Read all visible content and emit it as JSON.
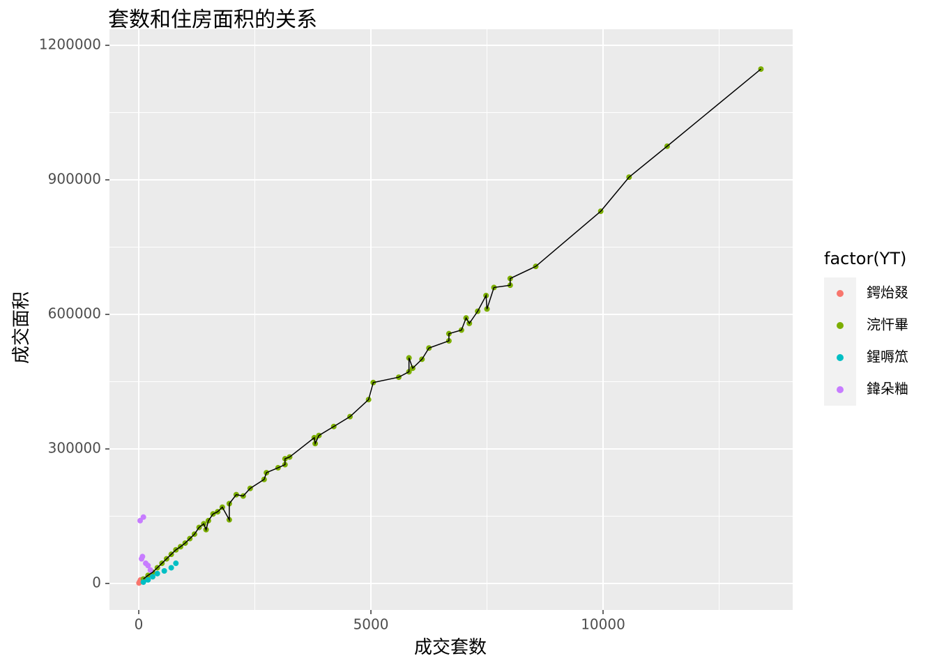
{
  "chart_data": {
    "type": "scatter",
    "title": "套数和住房面积的关系",
    "x_label": "成交套数",
    "y_label": "成交面积",
    "legend_title": "factor(YT)",
    "legend_position": "right",
    "grid": true,
    "connect_line": {
      "color": "#000000",
      "series": 1
    },
    "xlim": [
      -631,
      14084
    ],
    "ylim": [
      -59067,
      1235751
    ],
    "xticks": [
      0,
      5000,
      10000
    ],
    "yticks": [
      0,
      300000,
      600000,
      900000,
      1200000
    ],
    "xminor": [
      2500,
      7500,
      12500
    ],
    "yminor": [
      150000,
      450000,
      750000,
      1050000
    ],
    "series": [
      {
        "name": "鍔炲叕",
        "color": "#F8766D",
        "x": [
          5,
          20,
          40
        ],
        "y": [
          1000,
          4000,
          8000
        ]
      },
      {
        "name": "浣忓畢",
        "color": "#7CAE00",
        "x": [
          100,
          200,
          300,
          400,
          500,
          600,
          700,
          800,
          900,
          1000,
          1100,
          1200,
          1300,
          1400,
          1450,
          1500,
          1600,
          1700,
          1800,
          1950,
          1950,
          2100,
          2250,
          2400,
          2700,
          2750,
          3000,
          3150,
          3150,
          3250,
          3780,
          3800,
          3880,
          4200,
          4550,
          4950,
          5050,
          5600,
          5820,
          5820,
          5900,
          6100,
          6250,
          6680,
          6680,
          6950,
          7050,
          7120,
          7300,
          7480,
          7500,
          7650,
          8000,
          8000,
          8550,
          9950,
          10560,
          11380,
          13400
        ],
        "y": [
          10000,
          18000,
          25000,
          35000,
          45000,
          55000,
          65000,
          75000,
          82000,
          90000,
          100000,
          110000,
          125000,
          133000,
          120000,
          140000,
          155000,
          160000,
          170000,
          142000,
          178000,
          198000,
          195000,
          212000,
          232000,
          247000,
          258000,
          265000,
          278000,
          282000,
          325000,
          312000,
          330000,
          350000,
          372000,
          410000,
          448000,
          460000,
          472000,
          503000,
          480000,
          500000,
          525000,
          541000,
          557000,
          565000,
          592000,
          580000,
          607000,
          642000,
          612000,
          660000,
          665000,
          680000,
          707000,
          830000,
          906000,
          975000,
          1147000
        ]
      },
      {
        "name": "鍟嗕笟",
        "color": "#00BFC4",
        "x": [
          100,
          200,
          300,
          400,
          550,
          700,
          800
        ],
        "y": [
          3000,
          8000,
          15000,
          22000,
          28000,
          35000,
          45000
        ]
      },
      {
        "name": "鍏朵粬",
        "color": "#C77CFF",
        "x": [
          30,
          60,
          80,
          100,
          150,
          200,
          250
        ],
        "y": [
          140000,
          55000,
          60000,
          148000,
          45000,
          40000,
          30000
        ]
      }
    ]
  }
}
